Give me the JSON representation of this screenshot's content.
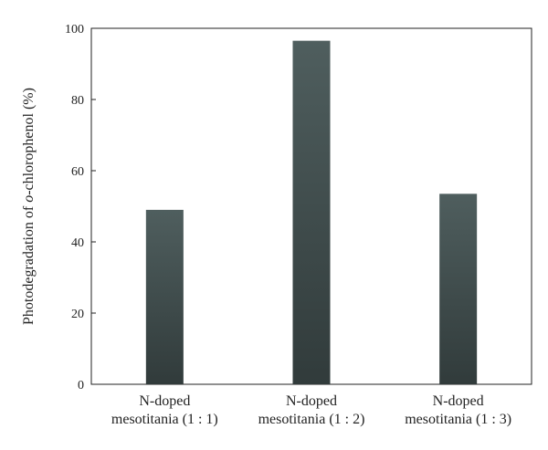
{
  "chart_data": {
    "type": "bar",
    "categories": [
      [
        "N-doped",
        "mesotitania (1 : 1)"
      ],
      [
        "N-doped",
        "mesotitania (1 : 2)"
      ],
      [
        "N-doped",
        "mesotitania (1 : 3)"
      ]
    ],
    "values": [
      49,
      96.5,
      53.5
    ],
    "ylabel": "Photodegradation of o-chlorophenol (%)",
    "ylabel_parts": [
      "Photodegradation of ",
      "o",
      "-chlorophenol (%)"
    ],
    "ylim": [
      0,
      100
    ],
    "yticks": [
      0,
      20,
      40,
      60,
      80,
      100
    ],
    "grid": false,
    "bar_color_top": "#4f5e5e",
    "bar_color_bottom": "#313b3b"
  }
}
